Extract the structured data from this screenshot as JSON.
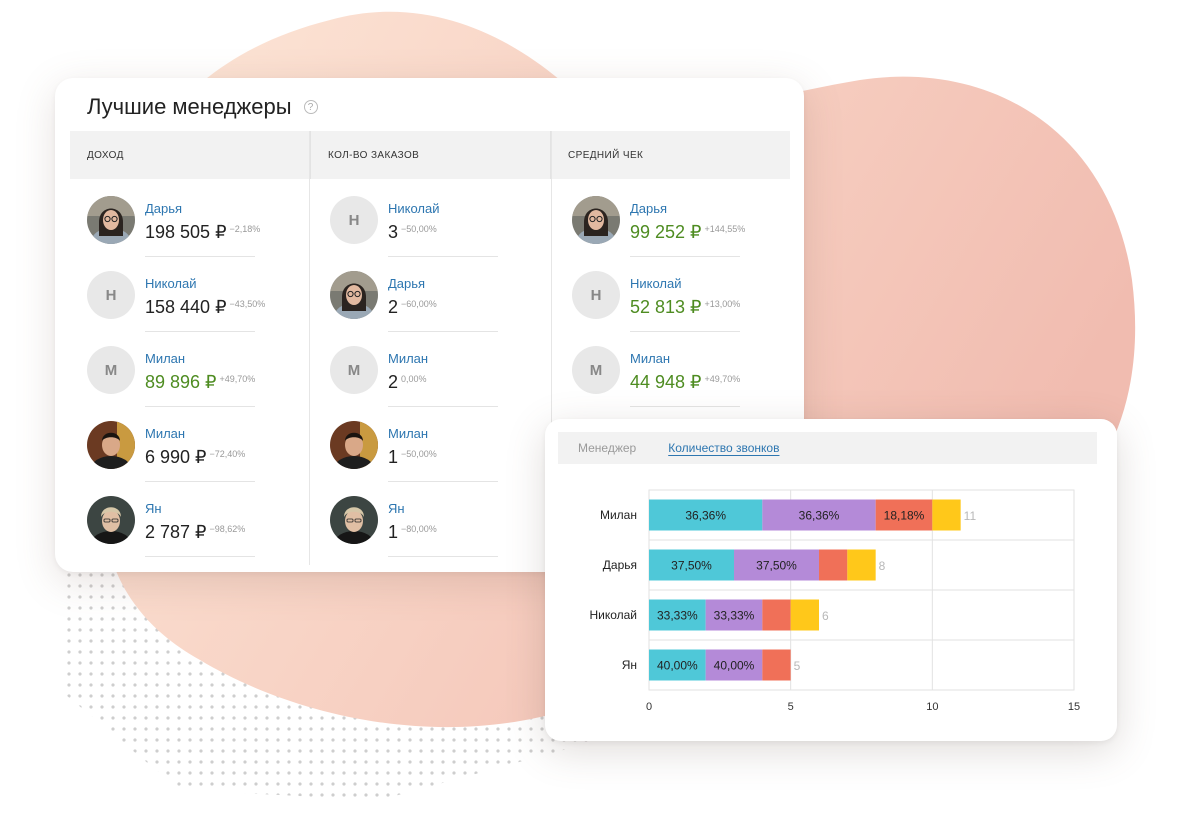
{
  "widget": {
    "title": "Лучшие менеджеры",
    "help_icon": "?",
    "columns": [
      {
        "header": "ДОХОД",
        "rows": [
          {
            "initial": "",
            "photo": "woman-glasses",
            "name": "Дарья",
            "value": "198 505 ₽",
            "change": "−2,18%",
            "highlight": false
          },
          {
            "initial": "Н",
            "photo": "",
            "name": "Николай",
            "value": "158 440 ₽",
            "change": "−43,50%",
            "highlight": false
          },
          {
            "initial": "М",
            "photo": "",
            "name": "Милан",
            "value": "89 896 ₽",
            "change": "+49,70%",
            "highlight": true
          },
          {
            "initial": "",
            "photo": "man-dark",
            "name": "Милан",
            "value": "6 990 ₽",
            "change": "−72,40%",
            "highlight": false
          },
          {
            "initial": "",
            "photo": "man-light",
            "name": "Ян",
            "value": "2 787 ₽",
            "change": "−98,62%",
            "highlight": false
          }
        ]
      },
      {
        "header": "КОЛ-ВО ЗАКАЗОВ",
        "rows": [
          {
            "initial": "Н",
            "photo": "",
            "name": "Николай",
            "value": "3",
            "change": "−50,00%",
            "highlight": false
          },
          {
            "initial": "",
            "photo": "woman-glasses",
            "name": "Дарья",
            "value": "2",
            "change": "−60,00%",
            "highlight": false
          },
          {
            "initial": "М",
            "photo": "",
            "name": "Милан",
            "value": "2",
            "change": "0,00%",
            "highlight": false
          },
          {
            "initial": "",
            "photo": "man-dark",
            "name": "Милан",
            "value": "1",
            "change": "−50,00%",
            "highlight": false
          },
          {
            "initial": "",
            "photo": "man-light",
            "name": "Ян",
            "value": "1",
            "change": "−80,00%",
            "highlight": false
          }
        ]
      },
      {
        "header": "СРЕДНИЙ ЧЕК",
        "rows": [
          {
            "initial": "",
            "photo": "woman-glasses",
            "name": "Дарья",
            "value": "99 252 ₽",
            "change": "+144,55%",
            "highlight": true
          },
          {
            "initial": "Н",
            "photo": "",
            "name": "Николай",
            "value": "52 813 ₽",
            "change": "+13,00%",
            "highlight": true
          },
          {
            "initial": "М",
            "photo": "",
            "name": "Милан",
            "value": "44 948 ₽",
            "change": "+49,70%",
            "highlight": true
          }
        ]
      }
    ]
  },
  "calls_widget": {
    "tabs": [
      {
        "label": "Менеджер",
        "active": false
      },
      {
        "label": "Количество звонков",
        "active": true
      }
    ]
  },
  "colors": {
    "accent_link": "#2d76b0",
    "positive": "#4e8c21",
    "seg_cyan": "#4fc8d8",
    "seg_purple": "#b48ad8",
    "seg_red": "#f07058",
    "seg_yellow": "#ffc81a"
  },
  "chart_data": {
    "type": "bar",
    "orientation": "horizontal",
    "stacked": true,
    "categories": [
      "Милан",
      "Дарья",
      "Николай",
      "Ян"
    ],
    "series": [
      {
        "values": [
          4,
          3,
          2,
          2
        ],
        "color": "#4fc8d8",
        "labels": [
          "36,36%",
          "37,50%",
          "33,33%",
          "40,00%"
        ]
      },
      {
        "values": [
          4,
          3,
          2,
          2
        ],
        "color": "#b48ad8",
        "labels": [
          "36,36%",
          "37,50%",
          "33,33%",
          "40,00%"
        ]
      },
      {
        "values": [
          2,
          1,
          1,
          1
        ],
        "color": "#f07058",
        "labels": [
          "18,18%",
          "",
          "",
          ""
        ]
      },
      {
        "values": [
          1,
          1,
          1,
          0
        ],
        "color": "#ffc81a",
        "labels": [
          "",
          "",
          "",
          ""
        ]
      }
    ],
    "totals": [
      11,
      8,
      6,
      5
    ],
    "xlim": [
      0,
      15
    ],
    "xticks": [
      0,
      5,
      10,
      15
    ],
    "grid": true,
    "legend": "none"
  }
}
